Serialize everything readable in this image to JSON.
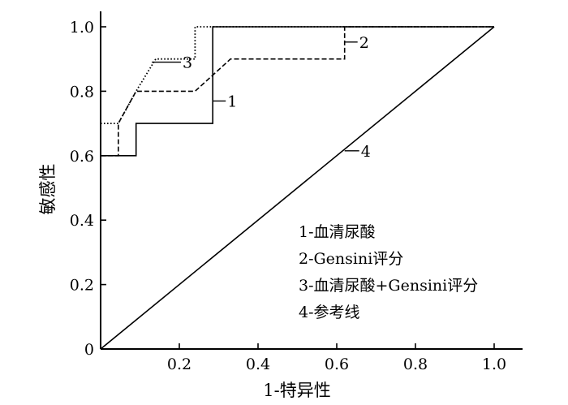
{
  "chart_data": {
    "type": "line",
    "title": "",
    "xlabel": "1-特异性",
    "ylabel": "敏感性",
    "xlim": [
      0,
      1.0
    ],
    "ylim": [
      0,
      1.0
    ],
    "x_ticks": [
      {
        "value": 0.2,
        "label": "0.2"
      },
      {
        "value": 0.4,
        "label": "0.4"
      },
      {
        "value": 0.6,
        "label": "0.6"
      },
      {
        "value": 0.8,
        "label": "0.8"
      },
      {
        "value": 1.0,
        "label": "1.0"
      }
    ],
    "y_ticks": [
      {
        "value": 0,
        "label": "0"
      },
      {
        "value": 0.2,
        "label": "0.2"
      },
      {
        "value": 0.4,
        "label": "0.4"
      },
      {
        "value": 0.6,
        "label": "0.6"
      },
      {
        "value": 0.8,
        "label": "0.8"
      },
      {
        "value": 1.0,
        "label": "1.0"
      }
    ],
    "grid": false,
    "legend_position": "bottom-right",
    "legend": [
      "1-血清尿酸",
      "2-Gensini评分",
      "3-血清尿酸+Gensini评分",
      "4-参考线"
    ],
    "series": [
      {
        "curve_label": "1",
        "style": "solid",
        "points": [
          [
            0,
            0.6
          ],
          [
            0.09,
            0.6
          ],
          [
            0.09,
            0.7
          ],
          [
            0.285,
            0.7
          ],
          [
            0.285,
            1.0
          ],
          [
            1.0,
            1.0
          ]
        ],
        "label_at": [
          0.285,
          0.8
        ]
      },
      {
        "curve_label": "2",
        "style": "dashed",
        "points": [
          [
            0,
            0.6
          ],
          [
            0.045,
            0.6
          ],
          [
            0.045,
            0.7
          ],
          [
            0.09,
            0.8
          ],
          [
            0.24,
            0.8
          ],
          [
            0.33,
            0.9
          ],
          [
            0.62,
            0.9
          ],
          [
            0.62,
            1.0
          ],
          [
            1.0,
            1.0
          ]
        ],
        "label_at": [
          0.62,
          0.93
        ]
      },
      {
        "curve_label": "3",
        "style": "dotted",
        "points": [
          [
            0,
            0.7
          ],
          [
            0.045,
            0.7
          ],
          [
            0.09,
            0.8
          ],
          [
            0.14,
            0.9
          ],
          [
            0.24,
            0.9
          ],
          [
            0.24,
            1.0
          ],
          [
            1.0,
            1.0
          ]
        ],
        "label_at": [
          0.13,
          0.87
        ]
      },
      {
        "curve_label": "4",
        "style": "solid",
        "points": [
          [
            0,
            0
          ],
          [
            1.0,
            1.0
          ]
        ],
        "label_at": [
          0.62,
          0.62
        ]
      }
    ]
  }
}
